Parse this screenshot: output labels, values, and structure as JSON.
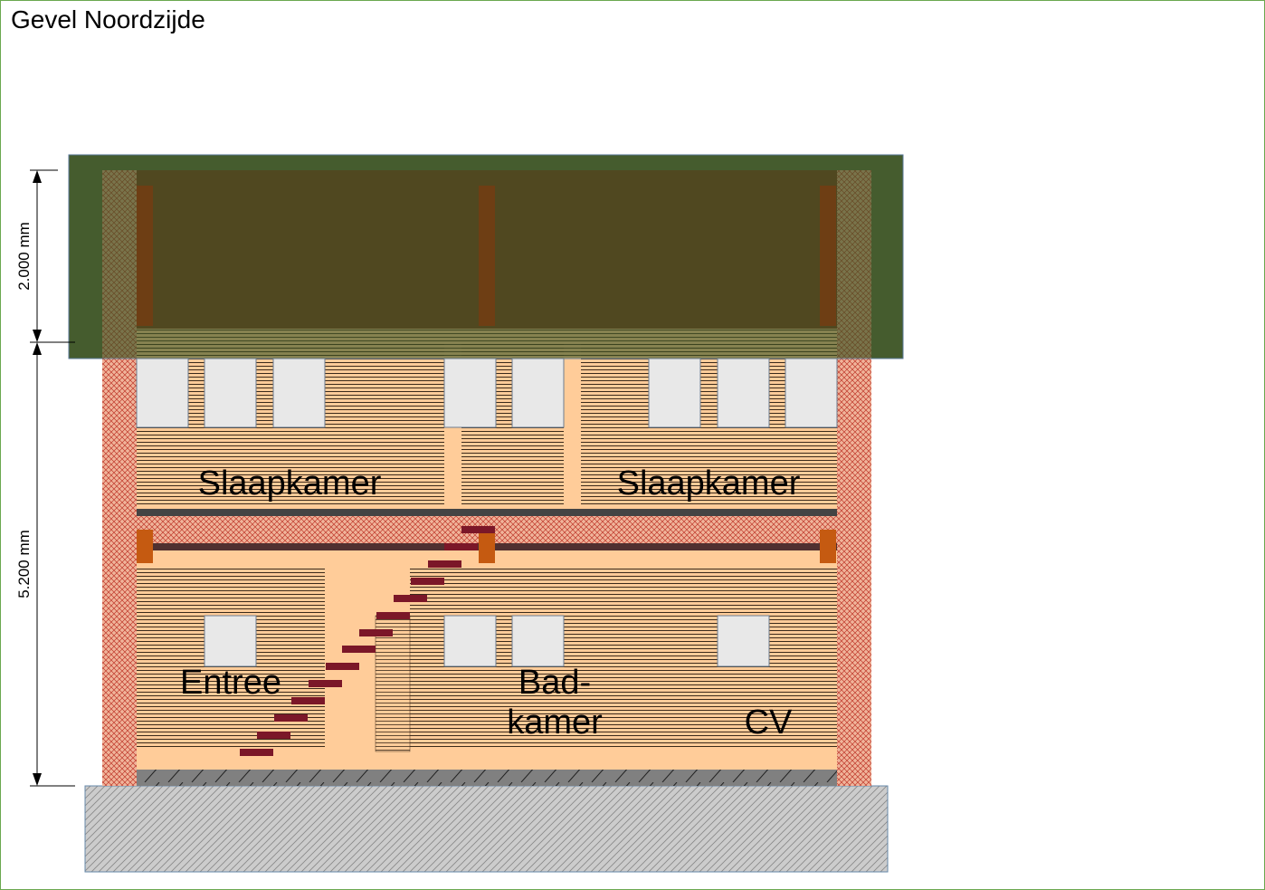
{
  "title": "Gevel Noordzijde",
  "dimensions": {
    "upper": "2.000 mm",
    "lower": "5.200 mm"
  },
  "rooms": {
    "bedroom_left": "Slaapkamer",
    "bedroom_right": "Slaapkamer",
    "entrance": "Entree",
    "bathroom_line1": "Bad-",
    "bathroom_line2": "kamer",
    "heating": "CV"
  },
  "colors": {
    "roof": "#3b5323",
    "wall": "#ffcc99",
    "brick_edge": "#e8a58a",
    "stair_step": "#7b1728",
    "beam": "#c55a11",
    "floor_beam": "#444444",
    "window": "#e8e8e8",
    "foundation": "#c8c8c8",
    "frame": "#6aa84f"
  }
}
